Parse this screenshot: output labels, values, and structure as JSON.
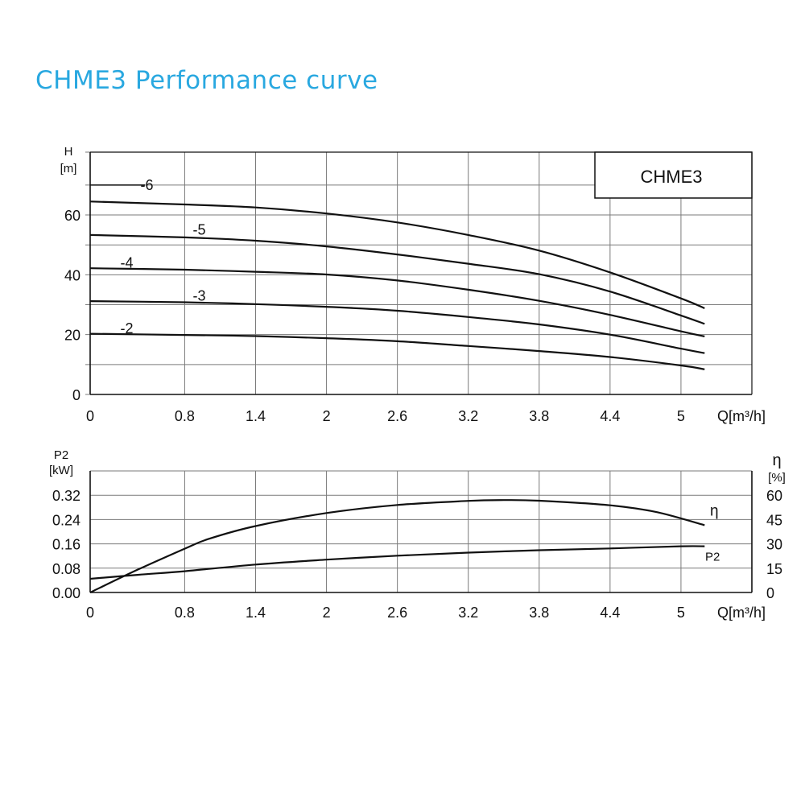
{
  "title": "CHME3 Performance curve",
  "chart_data": [
    {
      "type": "line",
      "id": "head",
      "model_label": "CHME3",
      "ylabel_line1": "H",
      "ylabel_line2": "[m]",
      "xlabel": "Q[m³/h]",
      "xlim": [
        0,
        5.6
      ],
      "ylim": [
        0,
        81
      ],
      "x_ticks": [
        "0",
        "0.8",
        "1.4",
        "2",
        "2.6",
        "3.2",
        "3.8",
        "4.4",
        "5"
      ],
      "x_tick_values": [
        0,
        0.8,
        1.4,
        2,
        2.6,
        3.2,
        3.8,
        4.4,
        5
      ],
      "x_grid": [
        0,
        0.8,
        1.4,
        2,
        2.6,
        3.2,
        3.8,
        4.4,
        5,
        5.6
      ],
      "y_grid": [
        0,
        10,
        20,
        30,
        40,
        50,
        60,
        70,
        81
      ],
      "y_ticks": [
        "0",
        "20",
        "40",
        "60"
      ],
      "y_tick_values": [
        0,
        20,
        40,
        60
      ],
      "grid": true,
      "series": [
        {
          "name": "-2",
          "x": [
            0,
            0.8,
            1.4,
            2,
            2.6,
            3.2,
            3.8,
            4.4,
            5,
            5.2
          ],
          "y": [
            20.3,
            19.9,
            19.5,
            18.8,
            17.8,
            16.2,
            14.5,
            12.5,
            9.7,
            8.4
          ]
        },
        {
          "name": "-3",
          "x": [
            0,
            0.8,
            1.4,
            2,
            2.6,
            3.2,
            3.8,
            4.4,
            5,
            5.2
          ],
          "y": [
            31.2,
            30.8,
            30.2,
            29.3,
            28,
            25.9,
            23.4,
            20,
            15.3,
            13.8
          ]
        },
        {
          "name": "-4",
          "x": [
            0,
            0.8,
            1.4,
            2,
            2.6,
            3.2,
            3.8,
            4.4,
            5,
            5.2
          ],
          "y": [
            42.2,
            41.7,
            41,
            40.1,
            38.1,
            35,
            31.3,
            26.6,
            21.1,
            19.4
          ]
        },
        {
          "name": "-5",
          "x": [
            0,
            0.8,
            1.4,
            2,
            2.6,
            3.2,
            3.8,
            4.4,
            5,
            5.2
          ],
          "y": [
            53.3,
            52.5,
            51.4,
            49.5,
            46.8,
            43.7,
            40.2,
            34.4,
            26.4,
            23.6
          ]
        },
        {
          "name": "-6",
          "x": [
            0,
            0.8,
            1.4,
            2,
            2.6,
            3.2,
            3.8,
            4.4,
            5,
            5.2
          ],
          "y": [
            64.5,
            63.5,
            62.5,
            60.5,
            57.5,
            53.3,
            48.1,
            40.8,
            32.1,
            28.8
          ]
        }
      ]
    },
    {
      "type": "line",
      "id": "power_efficiency",
      "ylabel_left_line1": "P2",
      "ylabel_left_line2": "[kW]",
      "ylabel_right_line1": "η",
      "ylabel_right_line2": "[%]",
      "xlabel": "Q[m³/h]",
      "xlim": [
        0,
        5.6
      ],
      "ylim_left": [
        0,
        0.4
      ],
      "ylim_right": [
        0,
        75
      ],
      "x_ticks": [
        "0",
        "0.8",
        "1.4",
        "2",
        "2.6",
        "3.2",
        "3.8",
        "4.4",
        "5"
      ],
      "x_tick_values": [
        0,
        0.8,
        1.4,
        2,
        2.6,
        3.2,
        3.8,
        4.4,
        5
      ],
      "x_grid": [
        0,
        0.8,
        1.4,
        2,
        2.6,
        3.2,
        3.8,
        4.4,
        5,
        5.6
      ],
      "y_grid_left": [
        0,
        0.08,
        0.16,
        0.24,
        0.32,
        0.4
      ],
      "y_ticks_left": [
        "0.00",
        "0.08",
        "0.16",
        "0.24",
        "0.32"
      ],
      "y_tick_values_left": [
        0,
        0.08,
        0.16,
        0.24,
        0.32
      ],
      "y_ticks_right": [
        "0",
        "15",
        "30",
        "45",
        "60"
      ],
      "y_tick_values_right": [
        0,
        15,
        30,
        45,
        60
      ],
      "grid": true,
      "series": [
        {
          "name": "P2",
          "axis": "left",
          "x": [
            0,
            0.4,
            0.8,
            1.4,
            2,
            2.6,
            3.2,
            3.8,
            4.4,
            5,
            5.2
          ],
          "y": [
            0.045,
            0.058,
            0.07,
            0.092,
            0.108,
            0.121,
            0.131,
            0.139,
            0.145,
            0.152,
            0.152
          ]
        },
        {
          "name": "η",
          "axis": "right",
          "x": [
            0,
            0.4,
            0.8,
            1.0,
            1.4,
            2,
            2.6,
            3.2,
            3.5,
            3.8,
            4.4,
            4.8,
            5.2
          ],
          "y": [
            0,
            14,
            27,
            33,
            41,
            49,
            54,
            56.5,
            57,
            56.6,
            53.8,
            49.5,
            41.5
          ]
        }
      ]
    }
  ]
}
